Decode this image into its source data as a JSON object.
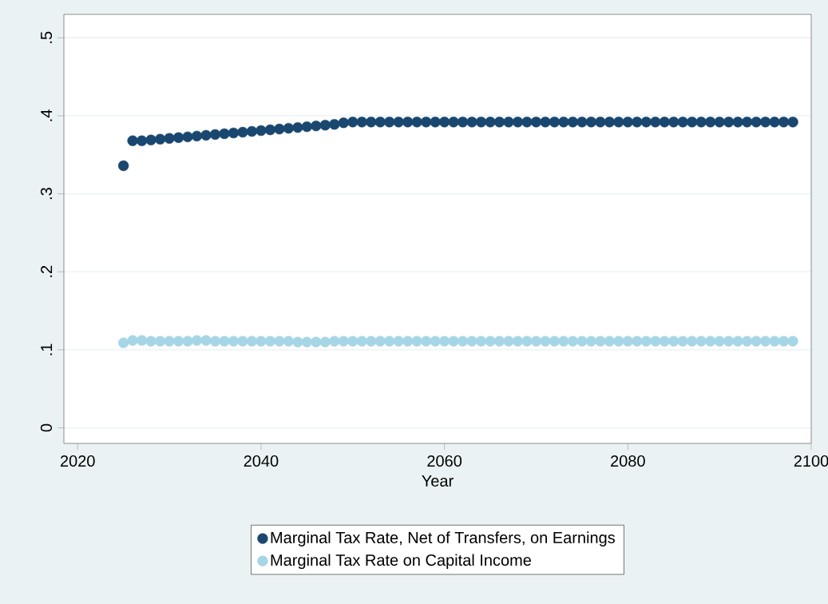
{
  "chart_data": {
    "type": "scatter",
    "xlabel": "Year",
    "x": [
      2025,
      2026,
      2027,
      2028,
      2029,
      2030,
      2031,
      2032,
      2033,
      2034,
      2035,
      2036,
      2037,
      2038,
      2039,
      2040,
      2041,
      2042,
      2043,
      2044,
      2045,
      2046,
      2047,
      2048,
      2049,
      2050,
      2051,
      2052,
      2053,
      2054,
      2055,
      2056,
      2057,
      2058,
      2059,
      2060,
      2061,
      2062,
      2063,
      2064,
      2065,
      2066,
      2067,
      2068,
      2069,
      2070,
      2071,
      2072,
      2073,
      2074,
      2075,
      2076,
      2077,
      2078,
      2079,
      2080,
      2081,
      2082,
      2083,
      2084,
      2085,
      2086,
      2087,
      2088,
      2089,
      2090,
      2091,
      2092,
      2093,
      2094,
      2095,
      2096,
      2097,
      2098
    ],
    "series": [
      {
        "name": "Marginal Tax Rate, Net of Transfers, on Earnings",
        "color": "#1a476f",
        "values": [
          0.336,
          0.368,
          0.368,
          0.369,
          0.37,
          0.371,
          0.372,
          0.373,
          0.374,
          0.375,
          0.376,
          0.377,
          0.378,
          0.379,
          0.38,
          0.381,
          0.382,
          0.383,
          0.384,
          0.385,
          0.386,
          0.387,
          0.388,
          0.389,
          0.391,
          0.392,
          0.392,
          0.392,
          0.392,
          0.392,
          0.392,
          0.392,
          0.392,
          0.392,
          0.392,
          0.392,
          0.392,
          0.392,
          0.392,
          0.392,
          0.392,
          0.392,
          0.392,
          0.392,
          0.392,
          0.392,
          0.392,
          0.392,
          0.392,
          0.392,
          0.392,
          0.392,
          0.392,
          0.392,
          0.392,
          0.392,
          0.392,
          0.392,
          0.392,
          0.392,
          0.392,
          0.392,
          0.392,
          0.392,
          0.392,
          0.392,
          0.392,
          0.392,
          0.392,
          0.392,
          0.392,
          0.392,
          0.392,
          0.392
        ]
      },
      {
        "name": "Marginal Tax Rate on Capital Income",
        "color": "#a6d6e6",
        "values": [
          0.109,
          0.112,
          0.112,
          0.111,
          0.111,
          0.111,
          0.111,
          0.111,
          0.112,
          0.112,
          0.111,
          0.111,
          0.111,
          0.111,
          0.111,
          0.111,
          0.111,
          0.111,
          0.111,
          0.11,
          0.11,
          0.11,
          0.11,
          0.111,
          0.111,
          0.111,
          0.111,
          0.111,
          0.111,
          0.111,
          0.111,
          0.111,
          0.111,
          0.111,
          0.111,
          0.111,
          0.111,
          0.111,
          0.111,
          0.111,
          0.111,
          0.111,
          0.111,
          0.111,
          0.111,
          0.111,
          0.111,
          0.111,
          0.111,
          0.111,
          0.111,
          0.111,
          0.111,
          0.111,
          0.111,
          0.111,
          0.111,
          0.111,
          0.111,
          0.111,
          0.111,
          0.111,
          0.111,
          0.111,
          0.111,
          0.111,
          0.111,
          0.111,
          0.111,
          0.111,
          0.111,
          0.111,
          0.111,
          0.111
        ]
      }
    ],
    "xlim": [
      2018.5,
      2100
    ],
    "xticks": [
      2020,
      2040,
      2060,
      2080,
      2100
    ],
    "ylim": [
      -0.02,
      0.53
    ],
    "yticks": [
      {
        "value": 0,
        "label": "0"
      },
      {
        "value": 0.1,
        "label": ".1"
      },
      {
        "value": 0.2,
        "label": ".2"
      },
      {
        "value": 0.3,
        "label": ".3"
      },
      {
        "value": 0.4,
        "label": ".4"
      },
      {
        "value": 0.5,
        "label": ".5"
      }
    ],
    "grid": "y",
    "legend": "bottom",
    "marker": "circle"
  }
}
